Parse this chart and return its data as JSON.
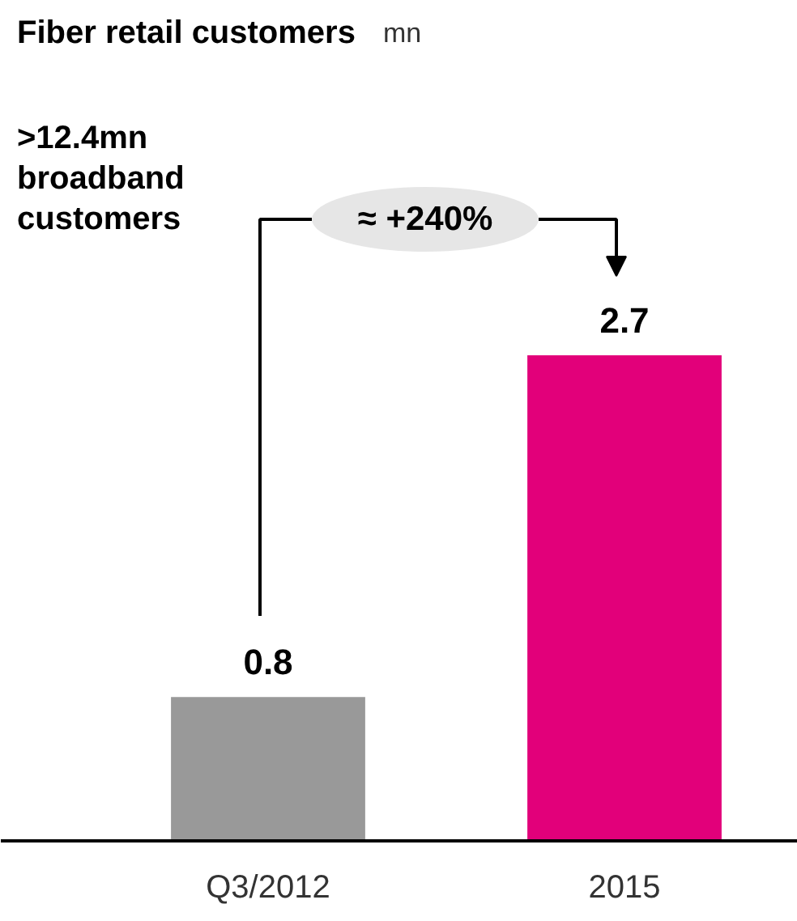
{
  "chart_data": {
    "type": "bar",
    "title": "Fiber retail customers",
    "subtitle": "mn",
    "categories": [
      "Q3/2012",
      "2015"
    ],
    "values": [
      0.8,
      2.7
    ],
    "colors": [
      "#999999",
      "#e2007a"
    ],
    "data_labels": true,
    "grid": false,
    "annotations": [
      ">12.4mn\nbroadband\ncustomers",
      "≈ +240%"
    ]
  }
}
